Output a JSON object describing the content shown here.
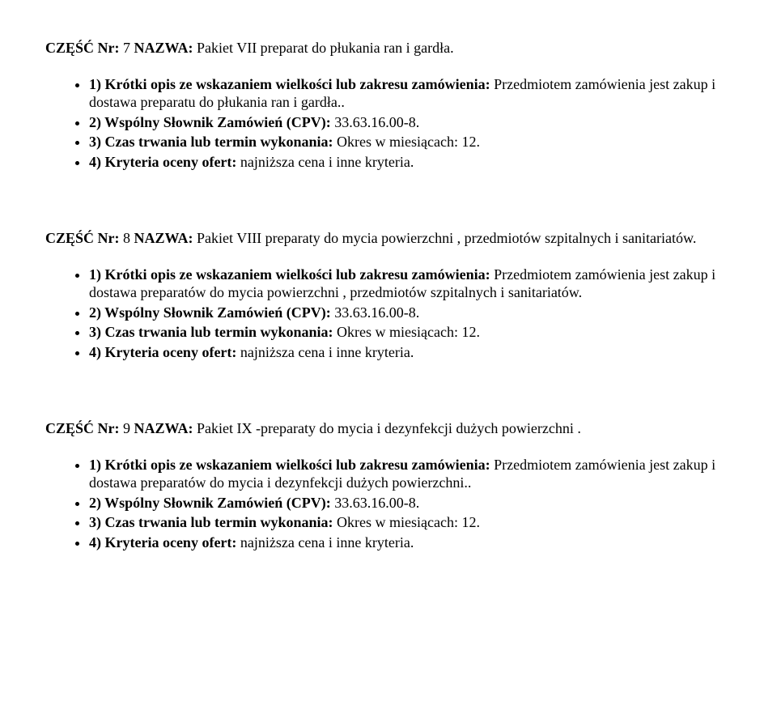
{
  "sections": [
    {
      "title_prefix": "CZĘŚĆ Nr:",
      "title_num": " 7 ",
      "title_label": "NAZWA:",
      "title_rest": " Pakiet VII preparat do płukania ran i gardła.",
      "items": [
        {
          "label": "1) Krótki opis ze wskazaniem wielkości lub zakresu zamówienia:",
          "text": " Przedmiotem zamówienia jest zakup i dostawa preparatu do płukania ran i gardła.."
        },
        {
          "label": "2) Wspólny Słownik Zamówień (CPV):",
          "text": " 33.63.16.00-8."
        },
        {
          "label": "3) Czas trwania lub termin wykonania:",
          "text": " Okres w miesiącach: 12."
        },
        {
          "label": "4) Kryteria oceny ofert:",
          "text": " najniższa cena i inne kryteria."
        }
      ]
    },
    {
      "title_prefix": "CZĘŚĆ Nr:",
      "title_num": " 8 ",
      "title_label": "NAZWA:",
      "title_rest": " Pakiet VIII preparaty do mycia powierzchni , przedmiotów szpitalnych  i sanitariatów.",
      "items": [
        {
          "label": "1) Krótki opis ze wskazaniem wielkości lub zakresu zamówienia:",
          "text": " Przedmiotem zamówienia jest zakup i dostawa preparatów do mycia powierzchni , przedmiotów szpitalnych i sanitariatów."
        },
        {
          "label": "2) Wspólny Słownik Zamówień (CPV):",
          "text": " 33.63.16.00-8."
        },
        {
          "label": "3) Czas trwania lub termin wykonania:",
          "text": " Okres w miesiącach: 12."
        },
        {
          "label": "4) Kryteria oceny ofert:",
          "text": " najniższa cena i inne kryteria."
        }
      ]
    },
    {
      "title_prefix": "CZĘŚĆ Nr:",
      "title_num": " 9 ",
      "title_label": "NAZWA:",
      "title_rest": " Pakiet IX -preparaty do mycia i dezynfekcji  dużych powierzchni .",
      "items": [
        {
          "label": "1) Krótki opis ze wskazaniem wielkości lub zakresu zamówienia:",
          "text": " Przedmiotem zamówienia jest zakup i dostawa preparatów do mycia i dezynfekcji dużych powierzchni.."
        },
        {
          "label": "2) Wspólny Słownik Zamówień (CPV):",
          "text": " 33.63.16.00-8."
        },
        {
          "label": "3) Czas trwania lub termin wykonania:",
          "text": " Okres w miesiącach: 12."
        },
        {
          "label": "4) Kryteria oceny ofert:",
          "text": " najniższa cena i inne kryteria."
        }
      ]
    }
  ]
}
